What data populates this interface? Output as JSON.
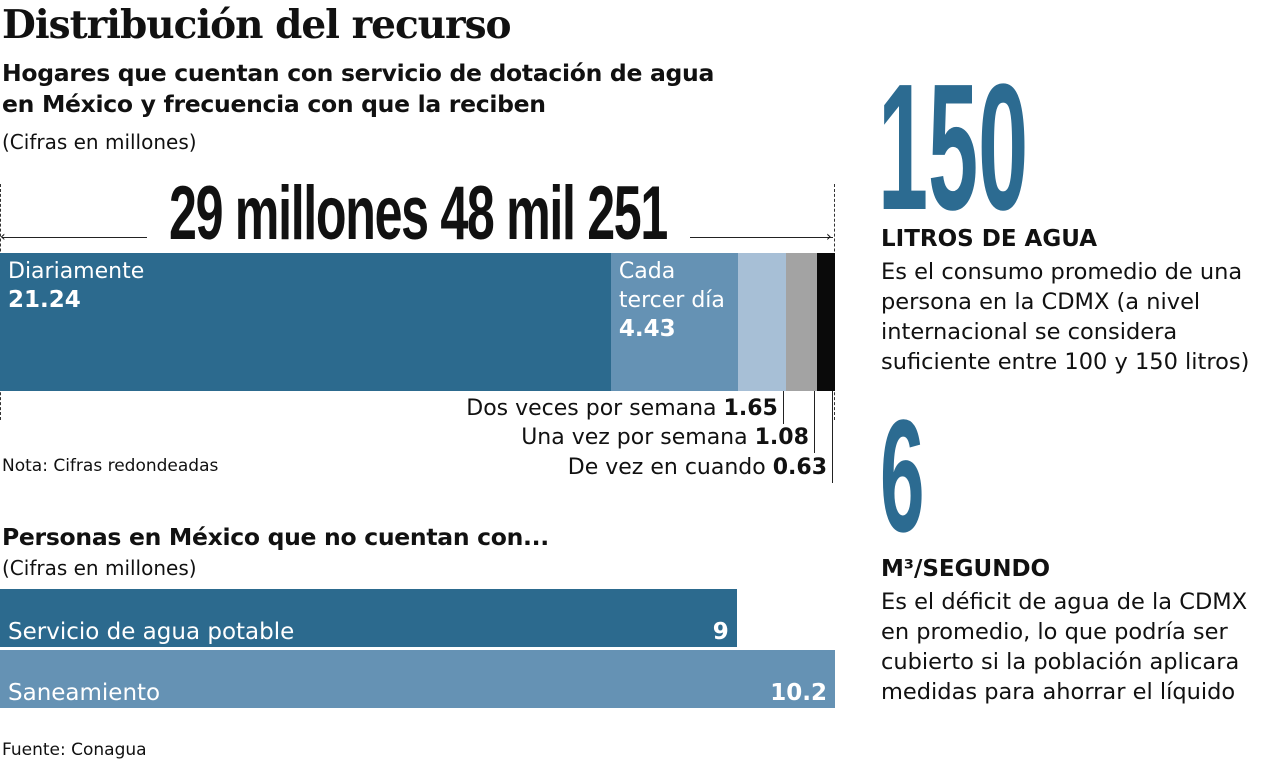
{
  "title": "Distribución del recurso",
  "section1": {
    "subtitle_line1": "Hogares que cuentan con servicio de dotación de agua",
    "subtitle_line2": "en México y frecuencia con que la reciben",
    "units": "(Cifras en millones)",
    "total_label": "29 millones 48 mil 251",
    "note": "Nota: Cifras redondeadas"
  },
  "section2": {
    "subtitle": "Personas en México que no cuentan con...",
    "units": "(Cifras en millones)"
  },
  "source": "Fuente: Conagua",
  "stat1": {
    "value": "150",
    "heading": "LITROS DE AGUA",
    "text": "Es el consumo promedio de una persona en la CDMX (a nivel internacional se considera suficiente entre 100 y 150 litros)"
  },
  "stat2": {
    "value": "6",
    "heading": "M³/SEGUNDO",
    "text": "Es el déficit de agua de la CDMX en promedio, lo que podría ser cubierto si la población aplicara medidas para ahorrar el líquido"
  },
  "colors": {
    "dark": "#2c6a8e",
    "mid": "#6592b4",
    "light": "#a7bfd6",
    "gray": "#a3a3a3",
    "black": "#0a0a0a"
  },
  "chart_data": [
    {
      "type": "bar",
      "stacked": true,
      "orientation": "horizontal",
      "title": "Hogares que cuentan con servicio de dotación de agua en México y frecuencia con que la reciben",
      "unit": "millones",
      "categories": [
        "Diariamente",
        "Cada tercer día",
        "Dos veces por semana",
        "Una vez por semana",
        "De vez en cuando"
      ],
      "values": [
        21.24,
        4.43,
        1.65,
        1.08,
        0.63
      ],
      "value_labels": [
        "21.24",
        "4.43",
        "1.65",
        "1.08",
        "0.63"
      ]
    },
    {
      "type": "bar",
      "orientation": "horizontal",
      "title": "Personas en México que no cuentan con...",
      "unit": "millones",
      "categories": [
        "Servicio de agua potable",
        "Saneamiento"
      ],
      "values": [
        9,
        10.2
      ],
      "value_labels": [
        "9",
        "10.2"
      ],
      "xlim": [
        0,
        10.2
      ]
    }
  ]
}
